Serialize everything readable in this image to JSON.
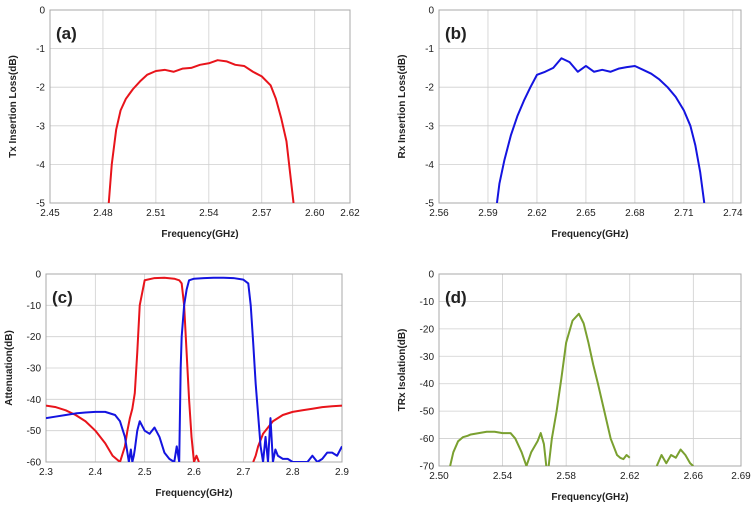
{
  "chart_data": [
    {
      "type": "line",
      "panel_label": "(a)",
      "xlabel": "Frequency(GHz)",
      "ylabel": "Tx Insertion Loss(dB)",
      "xlim": [
        2.45,
        2.62
      ],
      "ylim": [
        -5,
        0
      ],
      "xticks": [
        "2.45",
        "2.48",
        "2.51",
        "2.54",
        "2.57",
        "2.60",
        "2.62"
      ],
      "xtick_values": [
        2.45,
        2.48,
        2.51,
        2.54,
        2.57,
        2.6,
        2.62
      ],
      "yticks": [
        "0",
        "-1",
        "-2",
        "-3",
        "-4",
        "-5"
      ],
      "ytick_values": [
        0,
        -1,
        -2,
        -3,
        -4,
        -5
      ],
      "grid": true,
      "series": [
        {
          "color": "#e8141b",
          "x": [
            2.4833,
            2.485,
            2.4875,
            2.49,
            2.493,
            2.497,
            2.501,
            2.505,
            2.51,
            2.515,
            2.52,
            2.525,
            2.53,
            2.535,
            2.54,
            2.545,
            2.55,
            2.555,
            2.56,
            2.565,
            2.57,
            2.575,
            2.578,
            2.581,
            2.584,
            2.586,
            2.588
          ],
          "y": [
            -5.0,
            -4.0,
            -3.1,
            -2.6,
            -2.3,
            -2.05,
            -1.85,
            -1.68,
            -1.58,
            -1.55,
            -1.6,
            -1.52,
            -1.5,
            -1.42,
            -1.38,
            -1.3,
            -1.33,
            -1.42,
            -1.45,
            -1.6,
            -1.72,
            -1.95,
            -2.3,
            -2.8,
            -3.4,
            -4.2,
            -5.0
          ]
        }
      ]
    },
    {
      "type": "line",
      "panel_label": "(b)",
      "xlabel": "Frequency(GHz)",
      "ylabel": "Rx Insertion Loss(dB)",
      "xlim": [
        2.56,
        2.745
      ],
      "ylim": [
        -5,
        0
      ],
      "xticks": [
        "2.56",
        "2.59",
        "2.62",
        "2.65",
        "2.68",
        "2.71",
        "2.74"
      ],
      "xtick_values": [
        2.56,
        2.59,
        2.62,
        2.65,
        2.68,
        2.71,
        2.74
      ],
      "yticks": [
        "0",
        "-1",
        "-2",
        "-3",
        "-4",
        "-5"
      ],
      "ytick_values": [
        0,
        -1,
        -2,
        -3,
        -4,
        -5
      ],
      "grid": true,
      "series": [
        {
          "color": "#1414e0",
          "x": [
            2.5955,
            2.597,
            2.6,
            2.604,
            2.608,
            2.612,
            2.616,
            2.62,
            2.625,
            2.63,
            2.635,
            2.64,
            2.645,
            2.65,
            2.655,
            2.66,
            2.665,
            2.67,
            2.675,
            2.68,
            2.685,
            2.69,
            2.695,
            2.7,
            2.705,
            2.71,
            2.714,
            2.717,
            2.72,
            2.7225
          ],
          "y": [
            -5.0,
            -4.5,
            -3.9,
            -3.25,
            -2.75,
            -2.35,
            -2.0,
            -1.68,
            -1.6,
            -1.5,
            -1.25,
            -1.35,
            -1.6,
            -1.45,
            -1.6,
            -1.55,
            -1.6,
            -1.52,
            -1.48,
            -1.45,
            -1.55,
            -1.65,
            -1.8,
            -2.0,
            -2.25,
            -2.6,
            -3.0,
            -3.5,
            -4.2,
            -5.0
          ]
        }
      ]
    },
    {
      "type": "line",
      "panel_label": "(c)",
      "xlabel": "Frequency(GHz)",
      "ylabel": "Attenuation(dB)",
      "xlim": [
        2.3,
        2.9
      ],
      "ylim": [
        -60,
        0
      ],
      "xticks": [
        "2.3",
        "2.4",
        "2.5",
        "2.6",
        "2.7",
        "2.8",
        "2.9"
      ],
      "xtick_values": [
        2.3,
        2.4,
        2.5,
        2.6,
        2.7,
        2.8,
        2.9
      ],
      "yticks": [
        "0",
        "-10",
        "-20",
        "-30",
        "-40",
        "-50",
        "-60"
      ],
      "ytick_values": [
        0,
        -10,
        -20,
        -30,
        -40,
        -50,
        -60
      ],
      "grid": true,
      "series": [
        {
          "color": "#e8141b",
          "x": [
            2.3,
            2.32,
            2.34,
            2.36,
            2.38,
            2.4,
            2.42,
            2.435,
            2.45,
            2.46,
            2.465,
            2.47,
            2.475,
            2.48,
            2.485,
            2.49,
            2.5,
            2.52,
            2.54,
            2.56,
            2.57,
            2.575,
            2.58,
            2.585,
            2.59,
            2.595,
            2.6,
            2.605,
            2.61,
            null,
            2.72,
            2.725,
            2.73,
            2.74,
            2.75,
            2.76,
            2.78,
            2.8,
            2.82,
            2.84,
            2.86,
            2.88,
            2.9
          ],
          "y": [
            -42,
            -42.5,
            -43.5,
            -45,
            -47,
            -50,
            -54,
            -58,
            -60,
            -55,
            -50,
            -46,
            -43,
            -38,
            -25,
            -10,
            -2,
            -1.3,
            -1.2,
            -1.5,
            -2,
            -3,
            -10,
            -25,
            -40,
            -52,
            -60,
            -58,
            -60,
            null,
            -60,
            -58,
            -55,
            -51,
            -49,
            -47,
            -45,
            -44,
            -43.5,
            -43,
            -42.5,
            -42.2,
            -42
          ]
        },
        {
          "color": "#1414e0",
          "x": [
            2.3,
            2.32,
            2.34,
            2.36,
            2.38,
            2.4,
            2.42,
            2.44,
            2.45,
            2.46,
            2.465,
            2.468,
            2.472,
            2.475,
            2.478,
            2.48,
            2.485,
            2.49,
            2.5,
            2.51,
            2.52,
            2.53,
            2.54,
            2.55,
            2.56,
            2.565,
            2.57,
            2.573,
            2.575,
            2.58,
            2.585,
            2.59,
            2.6,
            2.62,
            2.64,
            2.66,
            2.68,
            2.7,
            2.71,
            2.715,
            2.72,
            2.725,
            2.73,
            2.735,
            2.74,
            2.745,
            2.75,
            2.755,
            2.76,
            2.765,
            2.77,
            2.78,
            2.79,
            2.8,
            2.81,
            2.82,
            2.83,
            2.84,
            2.85,
            2.86,
            2.87,
            2.88,
            2.89,
            2.9
          ],
          "y": [
            -46,
            -45.5,
            -45,
            -44.5,
            -44.2,
            -44,
            -44,
            -45,
            -47,
            -52,
            -57,
            -60,
            -56,
            -60,
            -58,
            -56,
            -50,
            -47,
            -50,
            -51,
            -49,
            -52,
            -57,
            -59,
            -60,
            -55,
            -60,
            -30,
            -20,
            -10,
            -5,
            -2,
            -1.5,
            -1.3,
            -1.2,
            -1.2,
            -1.3,
            -1.8,
            -3,
            -10,
            -22,
            -35,
            -45,
            -55,
            -60,
            -52,
            -60,
            -46,
            -60,
            -56,
            -58,
            -59,
            -59,
            -60,
            -60,
            -60,
            -60,
            -58,
            -60,
            -59,
            -57,
            -57,
            -58,
            -55
          ]
        }
      ]
    },
    {
      "type": "line",
      "panel_label": "(d)",
      "xlabel": "Frequency(GHz)",
      "ylabel": "TRx Isolation(dB)",
      "xlim": [
        2.5,
        2.69
      ],
      "ylim": [
        -70,
        0
      ],
      "xticks": [
        "2.50",
        "2.54",
        "2.58",
        "2.62",
        "2.66",
        "2.69"
      ],
      "xtick_values": [
        2.5,
        2.54,
        2.58,
        2.62,
        2.66,
        2.69
      ],
      "yticks": [
        "0",
        "-10",
        "-20",
        "-30",
        "-40",
        "-50",
        "-60",
        "-70"
      ],
      "ytick_values": [
        0,
        -10,
        -20,
        -30,
        -40,
        -50,
        -60,
        -70
      ],
      "grid": true,
      "series": [
        {
          "color": "#7aa030",
          "x": [
            2.507,
            2.509,
            2.512,
            2.515,
            2.518,
            2.52,
            2.525,
            2.53,
            2.535,
            2.54,
            2.545,
            2.548,
            2.552,
            2.555,
            2.558,
            2.562,
            2.564,
            2.566,
            2.5675,
            null,
            2.569,
            2.571,
            2.574,
            2.577,
            2.58,
            2.584,
            2.588,
            2.591,
            2.594,
            2.597,
            2.6,
            2.604,
            2.608,
            2.612,
            2.614,
            2.616,
            2.618,
            2.62,
            null,
            2.637,
            2.64,
            2.643,
            2.646,
            2.649,
            2.652,
            2.655,
            2.658,
            2.66
          ],
          "y": [
            -70,
            -65,
            -61,
            -59.5,
            -59,
            -58.5,
            -58,
            -57.5,
            -57.5,
            -58,
            -58,
            -60,
            -65,
            -70,
            -65,
            -61,
            -58,
            -62,
            -70,
            null,
            -70,
            -60,
            -50,
            -38,
            -25,
            -17,
            -14.5,
            -18,
            -25,
            -33,
            -40,
            -50,
            -60,
            -66,
            -67,
            -67.5,
            -66,
            -67,
            null,
            -70,
            -66,
            -69,
            -66,
            -67,
            -64,
            -66,
            -69,
            -70
          ]
        }
      ]
    }
  ]
}
